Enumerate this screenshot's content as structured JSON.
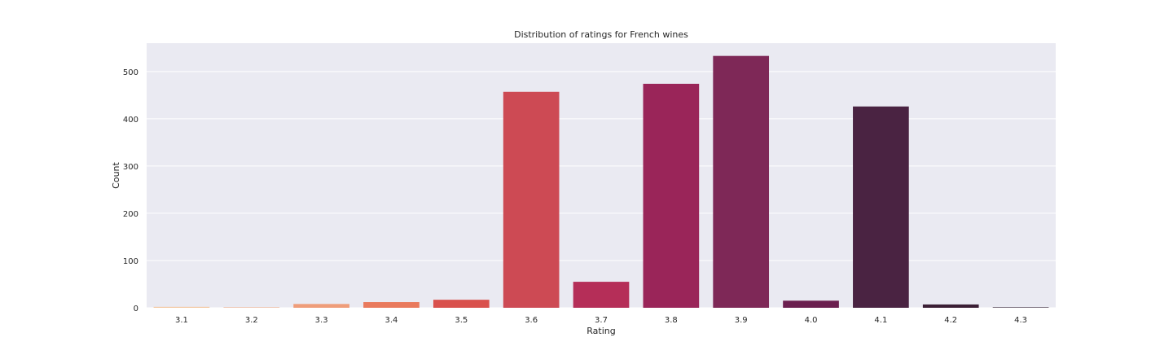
{
  "chart_data": {
    "type": "bar",
    "title": "Distribution of ratings for French wines",
    "xlabel": "Rating",
    "ylabel": "Count",
    "categories": [
      "3.1",
      "3.2",
      "3.3",
      "3.4",
      "3.5",
      "3.6",
      "3.7",
      "3.8",
      "3.9",
      "4.0",
      "4.1",
      "4.2",
      "4.3"
    ],
    "values": [
      2,
      1,
      8,
      12,
      17,
      457,
      55,
      474,
      533,
      15,
      426,
      7,
      1
    ],
    "ylim": [
      0,
      560
    ],
    "yticks": [
      0,
      100,
      200,
      300,
      400,
      500
    ],
    "grid": true,
    "colors": {
      "background": "#eaeaf2",
      "grid": "#ffffff",
      "bars": [
        "#f3c7a0",
        "#f2b08c",
        "#ef9d7a",
        "#e97a5d",
        "#d9514d",
        "#cd4a54",
        "#b52e58",
        "#9a2559",
        "#7e2857",
        "#6b1f4f",
        "#4a2342",
        "#3b1f35",
        "#2e1a2b"
      ]
    }
  }
}
